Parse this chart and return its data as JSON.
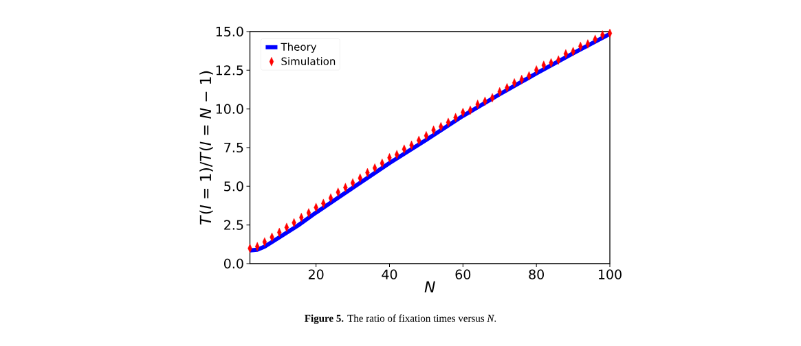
{
  "chart_data": {
    "type": "line",
    "xlabel": "*N*",
    "ylabel": "*T*(*I* = 1)/*T*(*I* = *N* − 1)",
    "annotations": [
      "**Figure 5.** The ratio of fixation times versus *N*."
    ],
    "xlim": [
      2,
      100
    ],
    "ylim": [
      0,
      15
    ],
    "xticks": [
      20,
      40,
      60,
      80,
      100
    ],
    "yticks": [
      {
        "value": 0,
        "label": "0.0"
      },
      2.5,
      {
        "value": 5,
        "label": "5.0"
      },
      7.5,
      {
        "value": 10,
        "label": "10.0"
      },
      12.5,
      {
        "value": 15,
        "label": "15.0"
      }
    ],
    "legend": "top left",
    "series": [
      {
        "name": "Theory",
        "color": "#0000ff",
        "marker": "none",
        "line_style": "solid",
        "x": [
          2,
          4,
          6,
          10,
          15,
          20,
          30,
          40,
          50,
          60,
          70,
          80,
          90,
          100
        ],
        "values": [
          0.85,
          0.9,
          1.1,
          1.7,
          2.45,
          3.3,
          4.9,
          6.5,
          8.0,
          9.55,
          10.95,
          12.3,
          13.6,
          14.85
        ]
      },
      {
        "name": "Simulation",
        "type": "scatter",
        "color": "#ff0000",
        "marker": "diamond",
        "x": [
          2,
          4,
          6,
          8,
          10,
          12,
          14,
          16,
          18,
          20,
          22,
          24,
          26,
          28,
          30,
          32,
          34,
          36,
          38,
          40,
          42,
          44,
          46,
          48,
          50,
          52,
          54,
          56,
          58,
          60,
          62,
          64,
          66,
          68,
          70,
          72,
          74,
          76,
          78,
          80,
          82,
          84,
          86,
          88,
          90,
          92,
          94,
          96,
          98,
          100
        ],
        "values": [
          0.99,
          1.1,
          1.4,
          1.71,
          2.02,
          2.34,
          2.64,
          2.98,
          3.28,
          3.63,
          3.89,
          4.24,
          4.61,
          4.92,
          5.22,
          5.53,
          5.88,
          6.18,
          6.49,
          6.84,
          7.05,
          7.4,
          7.66,
          7.97,
          8.27,
          8.63,
          8.85,
          9.13,
          9.44,
          9.77,
          9.92,
          10.3,
          10.5,
          10.72,
          11.11,
          11.37,
          11.68,
          11.91,
          12.14,
          12.52,
          12.82,
          12.98,
          13.16,
          13.56,
          13.71,
          14.05,
          14.2,
          14.5,
          14.78,
          14.89
        ]
      }
    ]
  }
}
